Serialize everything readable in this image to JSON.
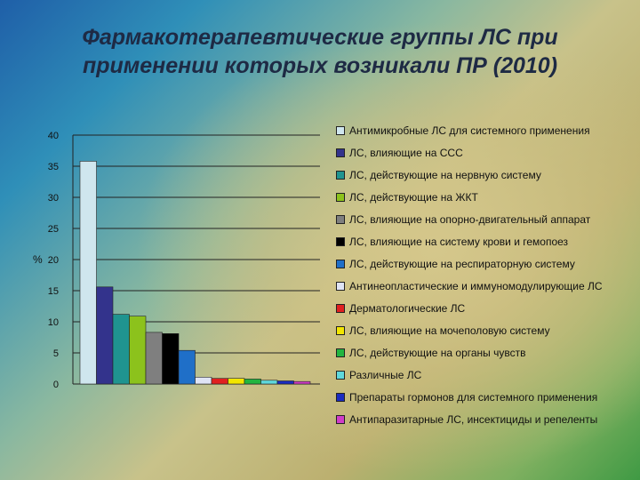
{
  "title_lines": [
    "Фармакотерапевтические группы ЛС при",
    "применении которых возникали ПР (2010)"
  ],
  "chart_data": {
    "type": "bar",
    "ylabel": "%",
    "ylim": [
      0,
      40
    ],
    "yticks": [
      0,
      5,
      10,
      15,
      20,
      25,
      30,
      35,
      40
    ],
    "grid": true,
    "legend_position": "right",
    "series": [
      {
        "name": "Антимикробные ЛС для системного применения",
        "value": 35.8,
        "color": "#cfe6ee"
      },
      {
        "name": "ЛС, влияющие на ССС",
        "value": 15.6,
        "color": "#33338c"
      },
      {
        "name": "ЛС, действующие на нервную систему",
        "value": 11.2,
        "color": "#1f9490"
      },
      {
        "name": "ЛС, действующие на ЖКТ",
        "value": 10.9,
        "color": "#8cc21c"
      },
      {
        "name": "ЛС, влияющие на опорно-двигательный аппарат",
        "value": 8.3,
        "color": "#7f7f7f"
      },
      {
        "name": "ЛС, влияющие на систему крови и гемопоез",
        "value": 8.1,
        "color": "#000000"
      },
      {
        "name": "ЛС, действующие на респираторную систему",
        "value": 5.4,
        "color": "#1f6fc8"
      },
      {
        "name": "Антинеопластические и иммуномодулирующие ЛС",
        "value": 1.1,
        "color": "#dfe4f5"
      },
      {
        "name": "Дерматологические ЛС",
        "value": 0.9,
        "color": "#e02020"
      },
      {
        "name": "ЛС, влияющие на мочеполовую систему",
        "value": 0.9,
        "color": "#f2e600"
      },
      {
        "name": "ЛС, действующие на органы чувств",
        "value": 0.8,
        "color": "#22b540"
      },
      {
        "name": "Различные ЛС",
        "value": 0.6,
        "color": "#5fd8dc"
      },
      {
        "name": "Препараты гормонов для системного применения",
        "value": 0.5,
        "color": "#1a2bc0"
      },
      {
        "name": "Антипаразитарные ЛС, инсектициды и репеленты",
        "value": 0.4,
        "color": "#d03cc8"
      }
    ]
  }
}
